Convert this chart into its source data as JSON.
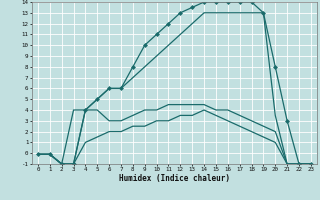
{
  "xlabel": "Humidex (Indice chaleur)",
  "bg_color": "#c2e0e0",
  "line_color": "#1a6b6b",
  "grid_color": "#ffffff",
  "xmin": 0,
  "xmax": 23,
  "ymin": -1,
  "ymax": 14,
  "series1_x": [
    0,
    1,
    2,
    3,
    4,
    5,
    6,
    7,
    8,
    9,
    10,
    11,
    12,
    13,
    14,
    15,
    16,
    17,
    18,
    19,
    20,
    21,
    22,
    23
  ],
  "series1_y": [
    -0.1,
    -0.1,
    -1,
    -1,
    4,
    5,
    6,
    6,
    8,
    10,
    11,
    12,
    13,
    13.5,
    14,
    14,
    14,
    14,
    14,
    13,
    8,
    3,
    -1,
    -1
  ],
  "series2_x": [
    0,
    1,
    2,
    3,
    4,
    5,
    6,
    7,
    8,
    9,
    10,
    11,
    12,
    13,
    14,
    15,
    16,
    17,
    18,
    19,
    20,
    21,
    22,
    23
  ],
  "series2_y": [
    -0.1,
    -0.1,
    -1,
    4,
    4,
    5,
    6,
    6,
    7,
    8,
    9,
    10,
    11,
    12,
    13,
    13,
    13,
    13,
    13,
    13,
    3.5,
    -1,
    -1,
    -1
  ],
  "series3_x": [
    0,
    1,
    2,
    3,
    4,
    5,
    6,
    7,
    8,
    9,
    10,
    11,
    12,
    13,
    14,
    15,
    16,
    17,
    18,
    19,
    20,
    21,
    22,
    23
  ],
  "series3_y": [
    -0.1,
    -0.1,
    -1,
    -1,
    4,
    4,
    3,
    3,
    3.5,
    4,
    4,
    4.5,
    4.5,
    4.5,
    4.5,
    4,
    4,
    3.5,
    3,
    2.5,
    2,
    -1,
    -1,
    -1
  ],
  "series4_x": [
    0,
    1,
    2,
    3,
    4,
    5,
    6,
    7,
    8,
    9,
    10,
    11,
    12,
    13,
    14,
    15,
    16,
    17,
    18,
    19,
    20,
    21,
    22,
    23
  ],
  "series4_y": [
    -0.1,
    -0.1,
    -1,
    -1,
    1,
    1.5,
    2,
    2,
    2.5,
    2.5,
    3,
    3,
    3.5,
    3.5,
    4,
    3.5,
    3,
    2.5,
    2,
    1.5,
    1,
    -1,
    -1,
    -1
  ]
}
